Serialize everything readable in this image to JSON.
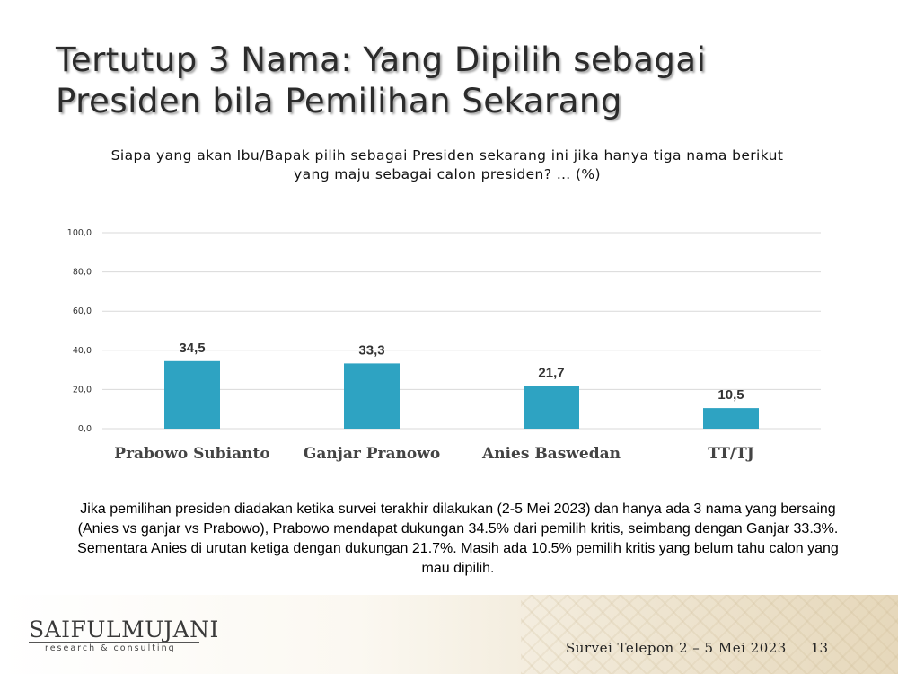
{
  "slide": {
    "title_line1": "Tertutup 3 Nama: Yang Dipilih sebagai",
    "title_line2": "Presiden bila Pemilihan Sekarang",
    "question_line1": "Siapa yang akan Ibu/Bapak pilih sebagai Presiden sekarang ini jika hanya tiga nama berikut",
    "question_line2": "yang maju sebagai calon presiden? … (%)",
    "summary": "Jika pemilihan presiden diadakan ketika survei terakhir dilakukan (2-5 Mei 2023) dan hanya ada 3 nama yang bersaing (Anies vs ganjar vs Prabowo), Prabowo mendapat dukungan 34.5% dari pemilih kritis, seimbang dengan Ganjar 33.3%. Sementara Anies di urutan ketiga dengan dukungan 21.7%. Masih ada 10.5% pemilih kritis yang belum tahu calon yang mau dipilih."
  },
  "footer": {
    "logo_main": "SAIFULMUJANI",
    "logo_sub": "research & consulting",
    "survey_label": "Survei Telepon 2 – 5 Mei 2023",
    "page_number": "13"
  },
  "chart_data": {
    "type": "bar",
    "categories": [
      "Prabowo Subianto",
      "Ganjar Pranowo",
      "Anies Baswedan",
      "TT/TJ"
    ],
    "values": [
      34.5,
      33.3,
      21.7,
      10.5
    ],
    "value_labels": [
      "34,5",
      "33,3",
      "21,7",
      "10,5"
    ],
    "ylim": [
      0,
      100
    ],
    "yticks": [
      0,
      20,
      40,
      60,
      80,
      100
    ],
    "ytick_labels": [
      "0,0",
      "20,0",
      "40,0",
      "60,0",
      "80,0",
      "100,0"
    ],
    "grid": true,
    "bar_color": "#2ea3c2",
    "grid_color": "#d9d9d9"
  }
}
